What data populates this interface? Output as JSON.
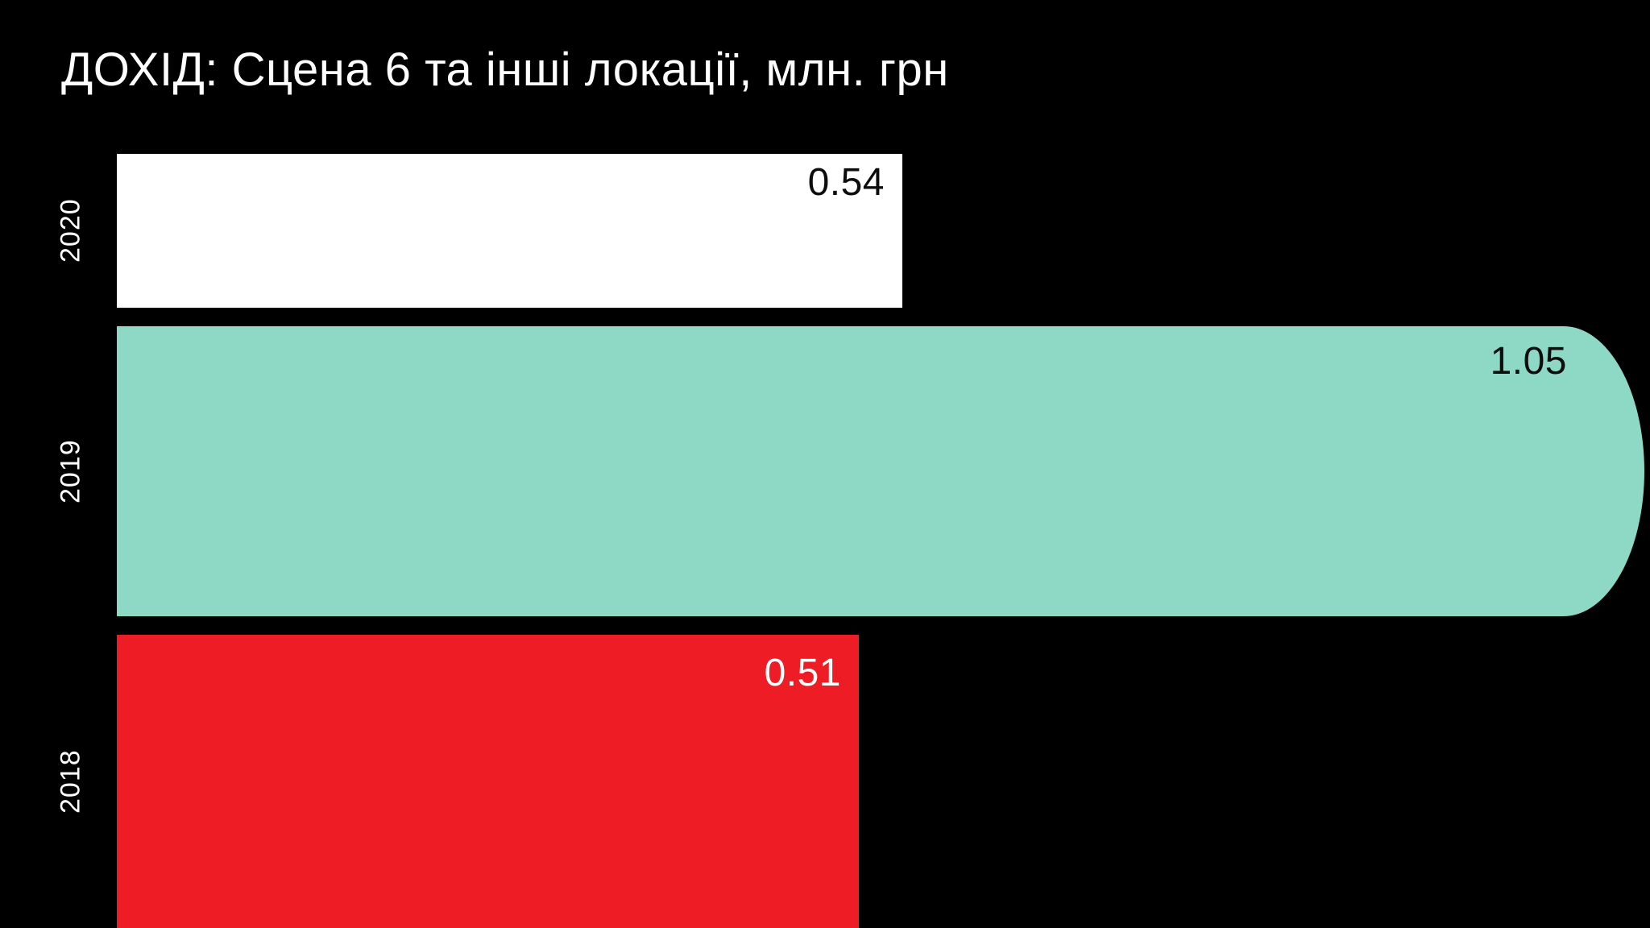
{
  "title": "ДОХІД: Сцена 6 та інші локації, млн. грн",
  "chart_data": {
    "type": "bar",
    "orientation": "horizontal",
    "title": "ДОХІД: Сцена 6 та інші локації, млн. грн",
    "unit": "млн. грн",
    "categories": [
      "2020",
      "2019",
      "2018"
    ],
    "values": [
      0.54,
      1.05,
      0.51
    ],
    "xlim": [
      0,
      1.13
    ],
    "grid": false,
    "legend": "none",
    "background_color": "#000000",
    "title_color": "#ffffff",
    "axis_label_color": "#ffffff",
    "rows": [
      {
        "year": "2020",
        "value": 0.54,
        "label": "0.54",
        "bar_color": "#ffffff",
        "label_color": "#0d0d0d"
      },
      {
        "year": "2019",
        "value": 1.05,
        "label": "1.05",
        "bar_color": "#8ed9c5",
        "label_color": "#0d0d0d"
      },
      {
        "year": "2018",
        "value": 0.51,
        "label": "0.51",
        "bar_color": "#ee1c25",
        "label_color": "#ffffff"
      }
    ]
  }
}
